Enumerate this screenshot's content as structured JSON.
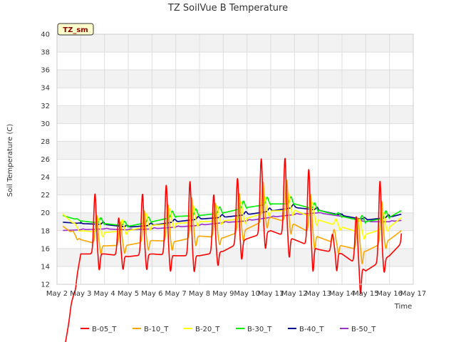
{
  "chart_data": {
    "type": "line",
    "title": "TZ SoilVue B Temperature",
    "xlabel": "Time",
    "ylabel": "Soil Temperature (C)",
    "site_badge": "TZ_sm",
    "ylim": [
      12,
      40
    ],
    "yticks": [
      12,
      14,
      16,
      18,
      20,
      22,
      24,
      26,
      28,
      30,
      32,
      34,
      36,
      38,
      40
    ],
    "xlim": [
      2,
      17
    ],
    "xticks": [
      2,
      3,
      4,
      5,
      6,
      7,
      8,
      9,
      10,
      11,
      12,
      13,
      14,
      15,
      16,
      17
    ],
    "xtick_labels": [
      "May 2",
      "May 3",
      "May 4",
      "May 5",
      "May 6",
      "May 7",
      "May 8",
      "May 9",
      "May 10",
      "May 11",
      "May 12",
      "May 13",
      "May 14",
      "May 15",
      "May 16",
      "May 17"
    ],
    "grid": true,
    "legend_position": "bottom",
    "series": [
      {
        "name": "B-05_T",
        "color": "#ff0000",
        "peak_hour": 0.6,
        "amp_p": [
          0.5,
          6.7,
          4.2,
          6.8,
          7.8,
          8.3,
          6.5,
          7.3,
          8.4,
          8.7,
          8.5,
          2.0,
          5.3,
          9.0,
          7.0
        ],
        "amp_m": [
          -0.5,
          -1.8,
          -1.5,
          -1.7,
          -1.8,
          -1.8,
          -1.5,
          -2.0,
          -1.8,
          -2.2,
          -2.7,
          -2.0,
          -3.0,
          -1.5,
          -1.0
        ],
        "dip": [
          0.0,
          15.4,
          15.4,
          15.1,
          15.4,
          15.2,
          15.2,
          15.7,
          17.1,
          18.0,
          17.0,
          15.9,
          15.4,
          13.5,
          15.2,
          18.0
        ]
      },
      {
        "name": "B-10_T",
        "color": "#ffa500",
        "peak_hour": 0.67,
        "amp_p": [
          0.3,
          3.2,
          2.6,
          3.5,
          4.1,
          4.5,
          3.8,
          4.3,
          4.4,
          4.7,
          4.3,
          1.5,
          3.5,
          4.7,
          3.5
        ],
        "amp_m": [
          -0.3,
          -1.0,
          -0.9,
          -1.0,
          -1.0,
          -1.0,
          -0.8,
          -1.2,
          -1.0,
          -1.2,
          -1.6,
          -1.0,
          -1.5,
          -0.8,
          -0.5
        ],
        "dip": [
          19.0,
          17.0,
          16.3,
          16.4,
          16.9,
          16.8,
          17.4,
          17.2,
          18.2,
          19.5,
          18.7,
          17.3,
          16.3,
          15.7,
          17.0,
          19.0
        ]
      },
      {
        "name": "B-20_T",
        "color": "#ffff00",
        "peak_hour": 0.75,
        "amp_p": [
          0.2,
          1.5,
          1.3,
          1.5,
          1.7,
          1.8,
          1.7,
          1.9,
          1.8,
          1.9,
          1.7,
          0.7,
          1.5,
          1.8,
          1.5
        ],
        "amp_m": [
          -0.2,
          -0.5,
          -0.4,
          -0.5,
          -0.5,
          -0.5,
          -0.4,
          -0.6,
          -0.5,
          -0.6,
          -0.7,
          -0.4,
          -0.6,
          -0.4,
          -0.3
        ],
        "dip": [
          20.5,
          18.0,
          17.8,
          18.0,
          18.6,
          18.8,
          19.0,
          19.1,
          19.4,
          20.2,
          20.3,
          19.2,
          18.4,
          17.6,
          18.4,
          20.5
        ]
      },
      {
        "name": "B-30_T",
        "color": "#00ee00",
        "peak_hour": 0.85,
        "amp_p": [
          0.1,
          0.6,
          0.5,
          0.6,
          0.7,
          0.75,
          0.7,
          0.8,
          0.8,
          0.8,
          0.7,
          0.3,
          0.6,
          0.8,
          0.6
        ],
        "amp_m": [
          -0.1,
          -0.2,
          -0.2,
          -0.2,
          -0.2,
          -0.2,
          -0.2,
          -0.2,
          -0.2,
          -0.2,
          -0.3,
          -0.2,
          -0.3,
          -0.2,
          -0.1
        ],
        "dip": [
          19.9,
          19.1,
          18.8,
          18.5,
          19.0,
          19.6,
          19.7,
          20.0,
          20.6,
          21.0,
          21.0,
          20.3,
          19.6,
          19.0,
          19.5,
          21.0
        ]
      },
      {
        "name": "B-40_T",
        "color": "#00008b",
        "peak_hour": 0.95,
        "amp_p": [
          0.05,
          0.25,
          0.2,
          0.25,
          0.3,
          0.3,
          0.3,
          0.35,
          0.35,
          0.35,
          0.3,
          0.15,
          0.25,
          0.3,
          0.25
        ],
        "amp_m": [
          -0.05,
          -0.1,
          -0.1,
          -0.1,
          -0.1,
          -0.1,
          -0.1,
          -0.1,
          -0.1,
          -0.1,
          -0.1,
          -0.1,
          -0.1,
          -0.1,
          -0.1
        ],
        "dip": [
          19.0,
          18.8,
          18.7,
          18.4,
          18.6,
          19.0,
          19.3,
          19.5,
          19.8,
          20.2,
          20.6,
          20.3,
          19.7,
          19.2,
          19.5,
          20.2
        ]
      },
      {
        "name": "B-50_T",
        "color": "#9932cc",
        "peak_hour": 1.1,
        "amp_p": [
          0.02,
          0.08,
          0.07,
          0.08,
          0.1,
          0.1,
          0.1,
          0.1,
          0.1,
          0.1,
          0.1,
          0.05,
          0.08,
          0.1,
          0.08
        ],
        "amp_m": [
          0,
          0,
          0,
          0,
          0,
          0,
          0,
          0,
          0,
          0,
          0,
          0,
          0,
          0,
          0
        ],
        "dip": [
          18.0,
          18.1,
          18.2,
          18.1,
          18.2,
          18.4,
          18.6,
          18.9,
          19.1,
          19.5,
          19.8,
          20.0,
          19.6,
          19.0,
          19.0,
          19.3
        ]
      }
    ]
  }
}
